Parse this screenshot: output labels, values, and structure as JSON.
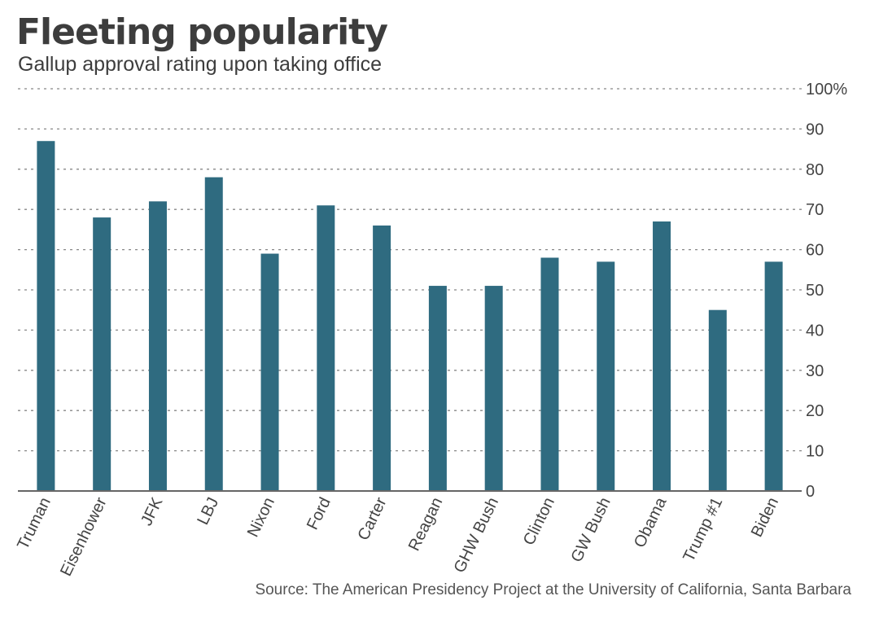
{
  "title": "Fleeting popularity",
  "subtitle": "Gallup approval rating upon taking office",
  "source": "Source: The American Presidency Project at the University of California, Santa Barbara",
  "colors": {
    "bar": "#2f6b80",
    "grid": "#888888",
    "axis": "#666666"
  },
  "chart_data": {
    "type": "bar",
    "title": "Fleeting popularity",
    "subtitle": "Gallup approval rating upon taking office",
    "categories": [
      "Truman",
      "Eisenhower",
      "JFK",
      "LBJ",
      "Nixon",
      "Ford",
      "Carter",
      "Reagan",
      "GHW Bush",
      "Clinton",
      "GW Bush",
      "Obama",
      "Trump #1",
      "Biden"
    ],
    "values": [
      87,
      68,
      72,
      78,
      59,
      71,
      66,
      51,
      51,
      58,
      57,
      67,
      45,
      57
    ],
    "ylim": [
      0,
      100
    ],
    "yticks": [
      0,
      10,
      20,
      30,
      40,
      50,
      60,
      70,
      80,
      90,
      100
    ],
    "ytick_labels": [
      "0",
      "10",
      "20",
      "30",
      "40",
      "50",
      "60",
      "70",
      "80",
      "90",
      "100%"
    ],
    "y_axis_side": "right",
    "grid": true,
    "xlabel": "",
    "ylabel": ""
  }
}
